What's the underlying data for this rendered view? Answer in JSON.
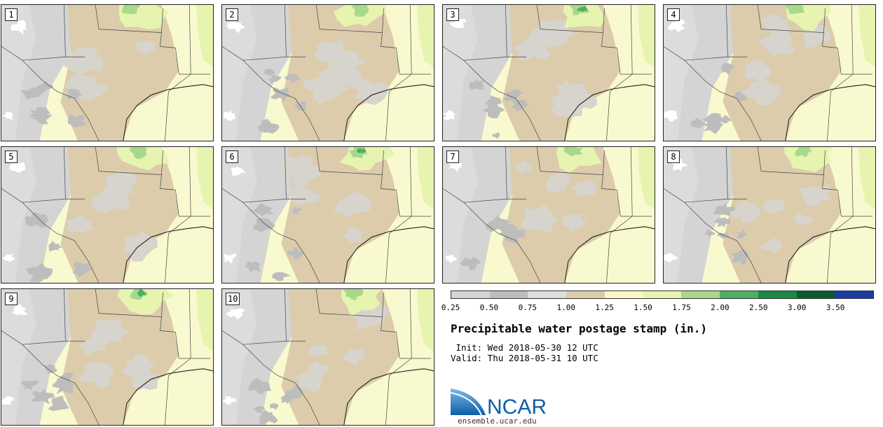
{
  "map": {
    "panels": [
      {
        "label": "1",
        "seed": 11
      },
      {
        "label": "2",
        "seed": 23
      },
      {
        "label": "3",
        "seed": 37
      },
      {
        "label": "4",
        "seed": 41
      },
      {
        "label": "5",
        "seed": 53
      },
      {
        "label": "6",
        "seed": 67
      },
      {
        "label": "7",
        "seed": 71
      },
      {
        "label": "8",
        "seed": 83
      },
      {
        "label": "9",
        "seed": 97
      },
      {
        "label": "10",
        "seed": 101
      }
    ]
  },
  "legend": {
    "colors": [
      "#d4d4d4",
      "#bdbdbd",
      "#dddddd",
      "#dcccac",
      "#f8f9c6",
      "#e6f4b0",
      "#a8d88c",
      "#4cb060",
      "#1a8a46",
      "#0a5c30",
      "#1b3aa8"
    ],
    "labels": [
      "0.25",
      "0.50",
      "0.75",
      "1.00",
      "1.25",
      "1.50",
      "1.75",
      "2.00",
      "2.50",
      "3.00",
      "3.50"
    ]
  },
  "title": "Precipitable water postage stamp (in.)",
  "init_line": " Init: Wed 2018-05-30 12 UTC",
  "valid_line": "Valid: Thu 2018-05-31 10 UTC",
  "logo": {
    "text": "NCAR",
    "url": "ensemble.ucar.edu"
  }
}
